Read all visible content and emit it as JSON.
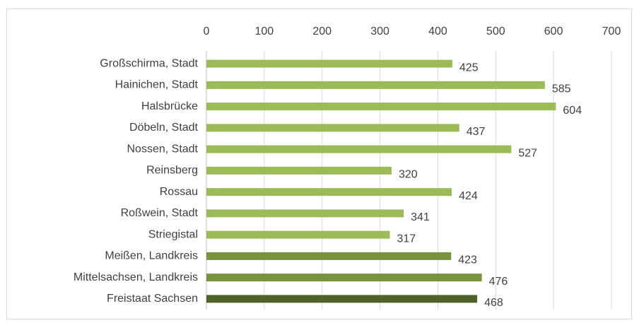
{
  "chart_data": {
    "type": "bar",
    "orientation": "horizontal",
    "categories": [
      "Großschirma, Stadt",
      "Hainichen, Stadt",
      "Halsbrücke",
      "Döbeln, Stadt",
      "Nossen, Stadt",
      "Reinsberg",
      "Rossau",
      "Roßwein, Stadt",
      "Striegistal",
      "Meißen, Landkreis",
      "Mittelsachsen, Landkreis",
      "Freistaat Sachsen"
    ],
    "values": [
      425,
      585,
      604,
      437,
      527,
      320,
      424,
      341,
      317,
      423,
      476,
      468
    ],
    "colors": [
      "#9bbb59",
      "#9bbb59",
      "#9bbb59",
      "#9bbb59",
      "#9bbb59",
      "#9bbb59",
      "#9bbb59",
      "#9bbb59",
      "#9bbb59",
      "#77933c",
      "#77933c",
      "#4f6228"
    ],
    "xlim": [
      0,
      700
    ],
    "xticks": [
      0,
      100,
      200,
      300,
      400,
      500,
      600,
      700
    ],
    "grid": true,
    "axis_position": "top"
  }
}
